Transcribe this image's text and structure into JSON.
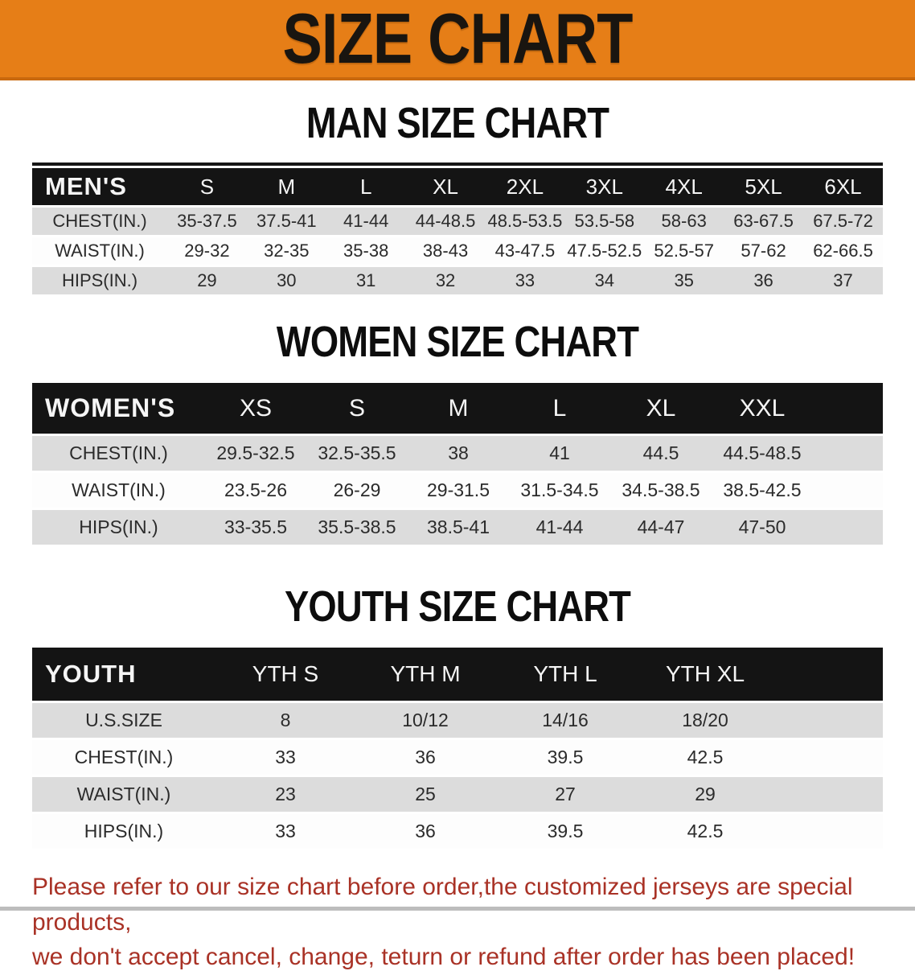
{
  "banner": {
    "title": "SIZE CHART"
  },
  "colors": {
    "banner_bg": "#E67E17",
    "table_header_bg": "#141414",
    "row_gray": "#DCDCDC",
    "warning_red": "#A93226"
  },
  "sections": {
    "men": {
      "heading": "MAN SIZE CHART",
      "table": {
        "label": "MEN'S",
        "columns": [
          "S",
          "M",
          "L",
          "XL",
          "2XL",
          "3XL",
          "4XL",
          "5XL",
          "6XL"
        ],
        "rows": [
          {
            "label": "CHEST(IN.)",
            "values": [
              "35-37.5",
              "37.5-41",
              "41-44",
              "44-48.5",
              "48.5-53.5",
              "53.5-58",
              "58-63",
              "63-67.5",
              "67.5-72"
            ]
          },
          {
            "label": "WAIST(IN.)",
            "values": [
              "29-32",
              "32-35",
              "35-38",
              "38-43",
              "43-47.5",
              "47.5-52.5",
              "52.5-57",
              "57-62",
              "62-66.5"
            ]
          },
          {
            "label": "HIPS(IN.)",
            "values": [
              "29",
              "30",
              "31",
              "32",
              "33",
              "34",
              "35",
              "36",
              "37"
            ]
          }
        ]
      }
    },
    "women": {
      "heading": "WOMEN SIZE CHART",
      "table": {
        "label": "WOMEN'S",
        "columns": [
          "XS",
          "S",
          "M",
          "L",
          "XL",
          "XXL"
        ],
        "rows": [
          {
            "label": "CHEST(IN.)",
            "values": [
              "29.5-32.5",
              "32.5-35.5",
              "38",
              "41",
              "44.5",
              "44.5-48.5"
            ]
          },
          {
            "label": "WAIST(IN.)",
            "values": [
              "23.5-26",
              "26-29",
              "29-31.5",
              "31.5-34.5",
              "34.5-38.5",
              "38.5-42.5"
            ]
          },
          {
            "label": "HIPS(IN.)",
            "values": [
              "33-35.5",
              "35.5-38.5",
              "38.5-41",
              "41-44",
              "44-47",
              "47-50"
            ]
          }
        ]
      }
    },
    "youth": {
      "heading": "YOUTH SIZE CHART",
      "table": {
        "label": "YOUTH",
        "columns": [
          "YTH S",
          "YTH M",
          "YTH L",
          "YTH XL"
        ],
        "rows": [
          {
            "label": "U.S.SIZE",
            "values": [
              "8",
              "10/12",
              "14/16",
              "18/20"
            ]
          },
          {
            "label": "CHEST(IN.)",
            "values": [
              "33",
              "36",
              "39.5",
              "42.5"
            ]
          },
          {
            "label": "WAIST(IN.)",
            "values": [
              "23",
              "25",
              "27",
              "29"
            ]
          },
          {
            "label": "HIPS(IN.)",
            "values": [
              "33",
              "36",
              "39.5",
              "42.5"
            ]
          }
        ]
      }
    }
  },
  "disclaimer": {
    "lines": [
      "Please refer to our size chart before order,the customized jerseys are special products,",
      "we don't accept cancel, change, teturn or refund after order has been placed!"
    ]
  }
}
